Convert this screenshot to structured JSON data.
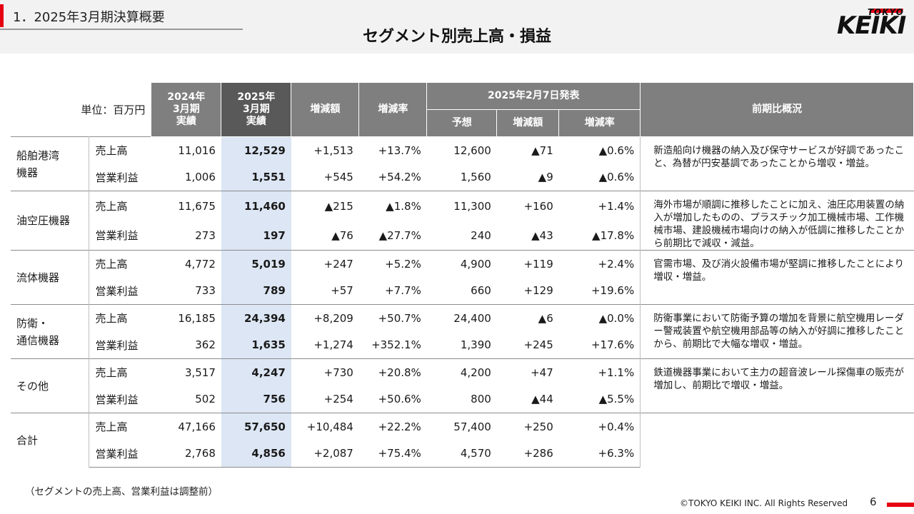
{
  "header": {
    "section_title": "1．2025年3月期決算概要",
    "page_title": "セグメント別売上高・損益",
    "logo_top": "TOKYO",
    "logo_main": "KEIKI"
  },
  "table": {
    "unit_label": "単位：百万円",
    "col_2024": "2024年\n3月期\n実績",
    "col_2025": "2025年\n3月期\n実績",
    "col_diff": "増減額",
    "col_rate": "増減率",
    "forecast_group": "2025年2月7日発表",
    "col_forecast": "予想",
    "col_f_diff": "増減額",
    "col_f_rate": "増減率",
    "col_comment": "前期比概況",
    "segments": [
      {
        "name": "船舶港湾\n機器",
        "comment": "新造船向け機器の納入及び保守サービスが好調であったこと、為替が円安基調であったことから増収・増益。",
        "rows": [
          {
            "item": "売上高",
            "y2024": "11,016",
            "y2025": "12,529",
            "diff": "+1,513",
            "rate": "+13.7%",
            "forecast": "12,600",
            "f_diff": "▲71",
            "f_rate": "▲0.6%"
          },
          {
            "item": "営業利益",
            "y2024": "1,006",
            "y2025": "1,551",
            "diff": "+545",
            "rate": "+54.2%",
            "forecast": "1,560",
            "f_diff": "▲9",
            "f_rate": "▲0.6%"
          }
        ]
      },
      {
        "name": "油空圧機器",
        "comment": "海外市場が順調に推移したことに加え、油圧応用装置の納入が増加したものの、プラスチック加工機械市場、工作機械市場、建設機械市場向けの納入が低調に推移したことから前期比で減収・減益。",
        "rows": [
          {
            "item": "売上高",
            "y2024": "11,675",
            "y2025": "11,460",
            "diff": "▲215",
            "rate": "▲1.8%",
            "forecast": "11,300",
            "f_diff": "+160",
            "f_rate": "+1.4%"
          },
          {
            "item": "営業利益",
            "y2024": "273",
            "y2025": "197",
            "diff": "▲76",
            "rate": "▲27.7%",
            "forecast": "240",
            "f_diff": "▲43",
            "f_rate": "▲17.8%"
          }
        ]
      },
      {
        "name": "流体機器",
        "comment": "官需市場、及び消火設備市場が堅調に推移したことにより増収・増益。",
        "rows": [
          {
            "item": "売上高",
            "y2024": "4,772",
            "y2025": "5,019",
            "diff": "+247",
            "rate": "+5.2%",
            "forecast": "4,900",
            "f_diff": "+119",
            "f_rate": "+2.4%"
          },
          {
            "item": "営業利益",
            "y2024": "733",
            "y2025": "789",
            "diff": "+57",
            "rate": "+7.7%",
            "forecast": "660",
            "f_diff": "+129",
            "f_rate": "+19.6%"
          }
        ]
      },
      {
        "name": "防衛・\n通信機器",
        "comment": "防衛事業において防衛予算の増加を背景に航空機用レーダー警戒装置や航空機用部品等の納入が好調に推移したことから、前期比で大幅な増収・増益。",
        "rows": [
          {
            "item": "売上高",
            "y2024": "16,185",
            "y2025": "24,394",
            "diff": "+8,209",
            "rate": "+50.7%",
            "forecast": "24,400",
            "f_diff": "▲6",
            "f_rate": "▲0.0%"
          },
          {
            "item": "営業利益",
            "y2024": "362",
            "y2025": "1,635",
            "diff": "+1,274",
            "rate": "+352.1%",
            "forecast": "1,390",
            "f_diff": "+245",
            "f_rate": "+17.6%"
          }
        ]
      },
      {
        "name": "その他",
        "comment": "鉄道機器事業において主力の超音波レール探傷車の販売が増加し、前期比で増収・増益。",
        "rows": [
          {
            "item": "売上高",
            "y2024": "3,517",
            "y2025": "4,247",
            "diff": "+730",
            "rate": "+20.8%",
            "forecast": "4,200",
            "f_diff": "+47",
            "f_rate": "+1.1%"
          },
          {
            "item": "営業利益",
            "y2024": "502",
            "y2025": "756",
            "diff": "+254",
            "rate": "+50.6%",
            "forecast": "800",
            "f_diff": "▲44",
            "f_rate": "▲5.5%"
          }
        ]
      },
      {
        "name": "合計",
        "comment": "",
        "rows": [
          {
            "item": "売上高",
            "y2024": "47,166",
            "y2025": "57,650",
            "diff": "+10,484",
            "rate": "+22.2%",
            "forecast": "57,400",
            "f_diff": "+250",
            "f_rate": "+0.4%"
          },
          {
            "item": "営業利益",
            "y2024": "2,768",
            "y2025": "4,856",
            "diff": "+2,087",
            "rate": "+75.4%",
            "forecast": "4,570",
            "f_diff": "+286",
            "f_rate": "+6.3%"
          }
        ]
      }
    ]
  },
  "footer": {
    "footnote": "（セグメントの売上高、営業利益は調整前）",
    "copyright": "©TOKYO KEIKI INC. All Rights Reserved",
    "page_number": "6"
  },
  "colors": {
    "accent_red": "#e60012",
    "header_gray": "#7f7f7f",
    "header_dark": "#595959",
    "highlight_blue": "#dce6f4"
  }
}
